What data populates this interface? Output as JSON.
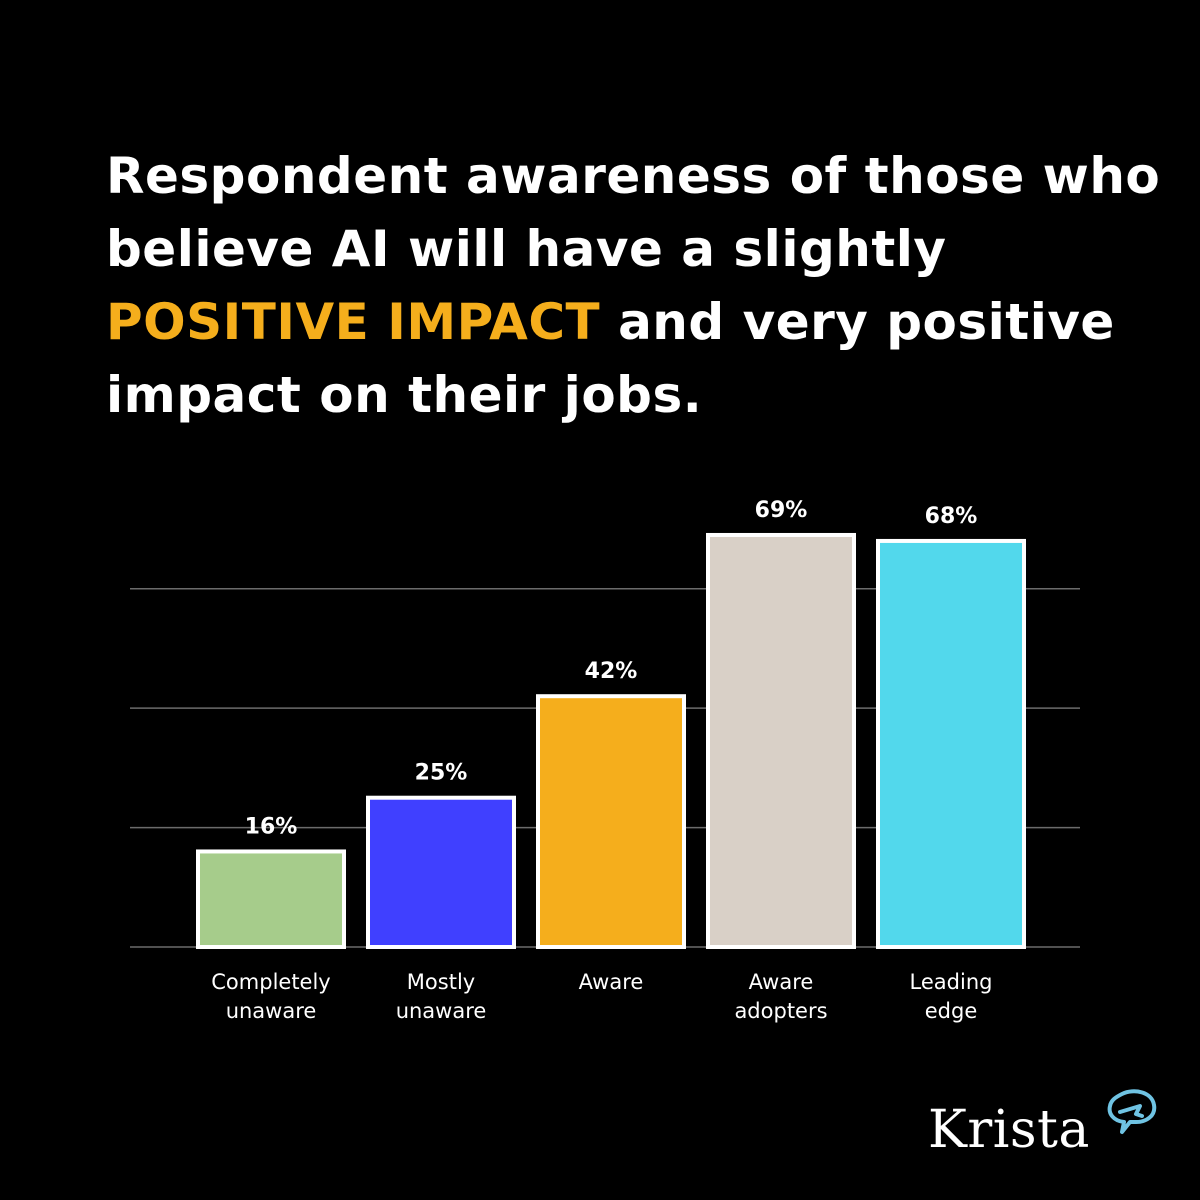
{
  "title": {
    "line1": "Respondent awareness of those who",
    "line2": "believe AI will have a slightly",
    "highlight": "POSITIVE IMPACT",
    "line3_rest": " and very positive",
    "line4": "impact on their jobs."
  },
  "chart_data": {
    "type": "bar",
    "categories": [
      [
        "Completely",
        "unaware"
      ],
      [
        "Mostly",
        "unaware"
      ],
      [
        "Aware"
      ],
      [
        "Aware",
        "adopters"
      ],
      [
        "Leading",
        "edge"
      ]
    ],
    "values": [
      16,
      25,
      42,
      69,
      68
    ],
    "value_labels": [
      "16%",
      "25%",
      "42%",
      "69%",
      "68%"
    ],
    "colors": [
      "#a6cc8b",
      "#4040ff",
      "#f5ae1c",
      "#d9d0c7",
      "#52d8ec"
    ],
    "ylim": [
      0,
      70
    ],
    "gridlines": [
      0,
      20,
      40,
      60
    ],
    "grid": true,
    "legend": "none"
  },
  "brand": {
    "name": "Krista",
    "icon": "speech-bubble-arrow-icon",
    "accent": "#6fc3e3"
  }
}
